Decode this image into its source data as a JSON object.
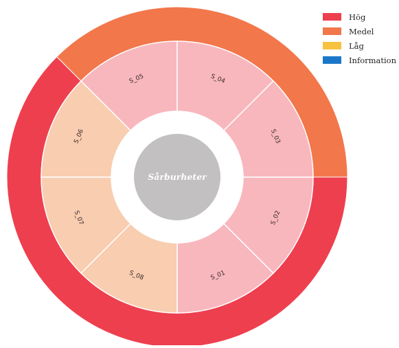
{
  "chart_data": {
    "type": "sunburst",
    "center_label": "Sårburheter",
    "legend": [
      {
        "label": "Hög",
        "color": "#ee3f4f"
      },
      {
        "label": "Medel",
        "color": "#f2774b"
      },
      {
        "label": "Låg",
        "color": "#f6c240"
      },
      {
        "label": "Information",
        "color": "#1b78c9"
      }
    ],
    "outer_ring": [
      {
        "severity": "Hög",
        "count": 5,
        "color": "#ee3f4f"
      },
      {
        "severity": "Medel",
        "count": 3,
        "color": "#f2774b"
      }
    ],
    "segments": [
      {
        "label": "S_02",
        "severity": "Hög",
        "value": 1,
        "color": "#f8b7bd"
      },
      {
        "label": "S_01",
        "severity": "Hög",
        "value": 1,
        "color": "#f8b7bd"
      },
      {
        "label": "S_08",
        "severity": "Medel",
        "value": 1,
        "color": "#f8cdb0"
      },
      {
        "label": "S_07",
        "severity": "Medel",
        "value": 1,
        "color": "#f8cdb0"
      },
      {
        "label": "S_06",
        "severity": "Medel",
        "value": 1,
        "color": "#f8cdb0"
      },
      {
        "label": "S_05",
        "severity": "Hög",
        "value": 1,
        "color": "#f8b7bd"
      },
      {
        "label": "S_04",
        "severity": "Hög",
        "value": 1,
        "color": "#f8b7bd"
      },
      {
        "label": "S_03",
        "severity": "Hög",
        "value": 1,
        "color": "#f8b7bd"
      }
    ],
    "start_angle_deg": 0,
    "direction": "clockwise",
    "legend_position": "top-right"
  }
}
